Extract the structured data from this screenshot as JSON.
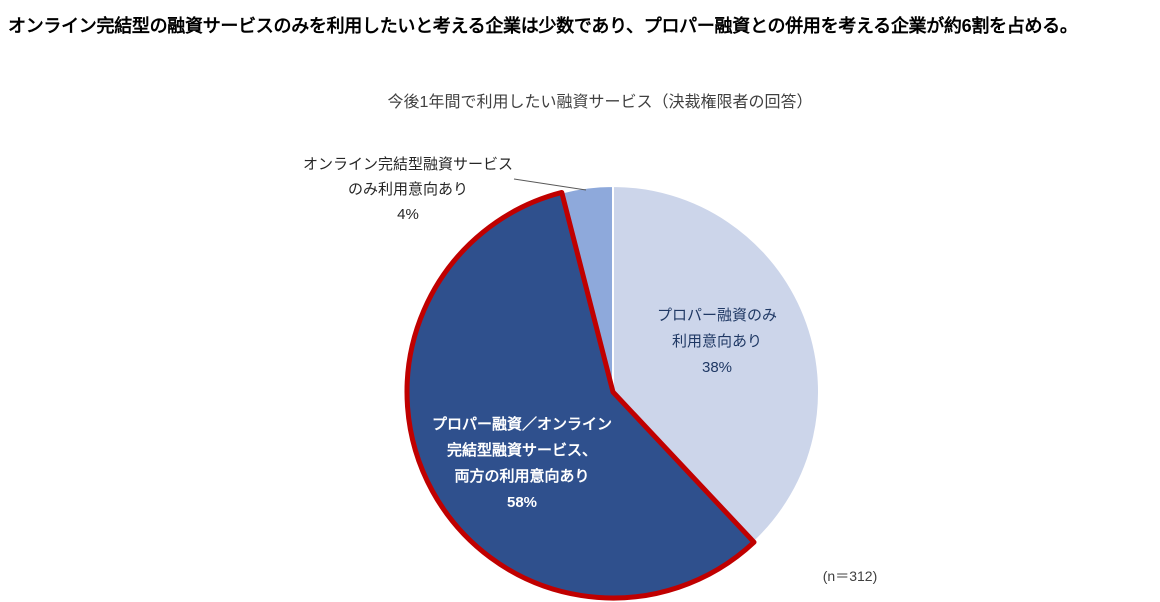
{
  "page": {
    "headline": "オンライン完結型の融資サービスのみを利用したいと考える企業は少数であり、プロパー融資との併用を考える企業が約6割を占める。",
    "chart_title": "今後1年間で利用したい融資サービス（決裁権限者の回答）",
    "sample_note": "(n＝312)"
  },
  "chart_data": {
    "type": "pie",
    "title": "今後1年間で利用したい融資サービス（決裁権限者の回答）",
    "start_angle_deg": 0,
    "direction": "clockwise",
    "sample_size": 312,
    "slices": [
      {
        "name": "プロパー融資のみ利用意向あり",
        "value_pct": 38,
        "color": "#CCD5EA",
        "separator_color": "#FFFFFF",
        "label": "プロパー融資のみ\n利用意向あり\n38%",
        "label_placement": "inside",
        "label_color": "#1F3864"
      },
      {
        "name": "プロパー融資／オンライン完結型融資サービス、両方の利用意向あり",
        "value_pct": 58,
        "color": "#2F508D",
        "outline_color": "#C00000",
        "label": "プロパー融資／オンライン\n完結型融資サービス、\n両方の利用意向あり\n58%",
        "label_placement": "inside",
        "label_color": "#FFFFFF"
      },
      {
        "name": "オンライン完結型融資サービスのみ利用意向あり",
        "value_pct": 4,
        "color": "#8EA9DB",
        "separator_color": "#FFFFFF",
        "label": "オンライン完結型融資サービス\nのみ利用意向あり\n4%",
        "label_placement": "outside",
        "label_color": "#262626",
        "leader_line_color": "#595959"
      }
    ]
  }
}
